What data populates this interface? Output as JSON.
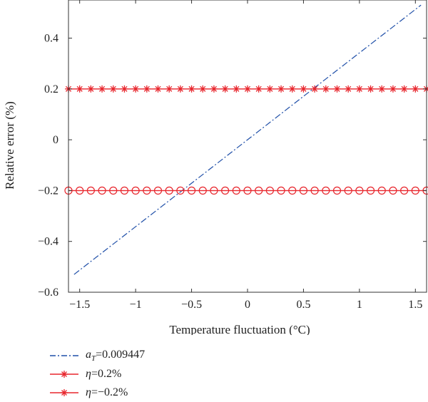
{
  "chart_data": {
    "type": "line",
    "xlabel": "Temperature fluctuation (°C)",
    "ylabel": "Relative error (%)",
    "xlim": [
      -1.6,
      1.6
    ],
    "ylim": [
      -0.6,
      0.55
    ],
    "xticks": [
      -1.5,
      -1,
      -0.5,
      0,
      0.5,
      1,
      1.5
    ],
    "xtick_labels": [
      "-1.5",
      "-1",
      "-0.5",
      "0",
      "0.5",
      "1",
      "1.5"
    ],
    "yticks": [
      -0.6,
      -0.4,
      -0.2,
      0,
      0.2,
      0.4
    ],
    "ytick_labels": [
      "-0.6",
      "-0.4",
      "-0.2",
      "0",
      "0.2",
      "0.4"
    ],
    "grid": false,
    "legend_position": "below",
    "series": [
      {
        "name": "aT=0.009447",
        "legend_symbol": "a",
        "legend_subscript": "T",
        "legend_value": "=0.009447",
        "style": "dashdot",
        "marker": "none",
        "color": "#1f4fa8",
        "x": [
          -1.55,
          1.55
        ],
        "y": [
          -0.53,
          0.53
        ]
      },
      {
        "name": "η=0.2%",
        "legend_symbol": "η",
        "legend_value": "=0.2%",
        "style": "solid",
        "marker": "asterisk",
        "color": "#e8262d",
        "x": [
          -1.6,
          -1.5,
          -1.4,
          -1.3,
          -1.2,
          -1.1,
          -1.0,
          -0.9,
          -0.8,
          -0.7,
          -0.6,
          -0.5,
          -0.4,
          -0.3,
          -0.2,
          -0.1,
          0.0,
          0.1,
          0.2,
          0.3,
          0.4,
          0.5,
          0.6,
          0.7,
          0.8,
          0.9,
          1.0,
          1.1,
          1.2,
          1.3,
          1.4,
          1.5,
          1.6
        ],
        "y": [
          0.2,
          0.2,
          0.2,
          0.2,
          0.2,
          0.2,
          0.2,
          0.2,
          0.2,
          0.2,
          0.2,
          0.2,
          0.2,
          0.2,
          0.2,
          0.2,
          0.2,
          0.2,
          0.2,
          0.2,
          0.2,
          0.2,
          0.2,
          0.2,
          0.2,
          0.2,
          0.2,
          0.2,
          0.2,
          0.2,
          0.2,
          0.2,
          0.2
        ]
      },
      {
        "name": "η=−0.2%",
        "legend_symbol": "η",
        "legend_value": "=−0.2%",
        "style": "solid",
        "marker": "circle",
        "color": "#e8262d",
        "x": [
          -1.6,
          -1.5,
          -1.4,
          -1.3,
          -1.2,
          -1.1,
          -1.0,
          -0.9,
          -0.8,
          -0.7,
          -0.6,
          -0.5,
          -0.4,
          -0.3,
          -0.2,
          -0.1,
          0.0,
          0.1,
          0.2,
          0.3,
          0.4,
          0.5,
          0.6,
          0.7,
          0.8,
          0.9,
          1.0,
          1.1,
          1.2,
          1.3,
          1.4,
          1.5,
          1.6
        ],
        "y": [
          -0.2,
          -0.2,
          -0.2,
          -0.2,
          -0.2,
          -0.2,
          -0.2,
          -0.2,
          -0.2,
          -0.2,
          -0.2,
          -0.2,
          -0.2,
          -0.2,
          -0.2,
          -0.2,
          -0.2,
          -0.2,
          -0.2,
          -0.2,
          -0.2,
          -0.2,
          -0.2,
          -0.2,
          -0.2,
          -0.2,
          -0.2,
          -0.2,
          -0.2,
          -0.2,
          -0.2,
          -0.2,
          -0.2
        ]
      }
    ]
  }
}
